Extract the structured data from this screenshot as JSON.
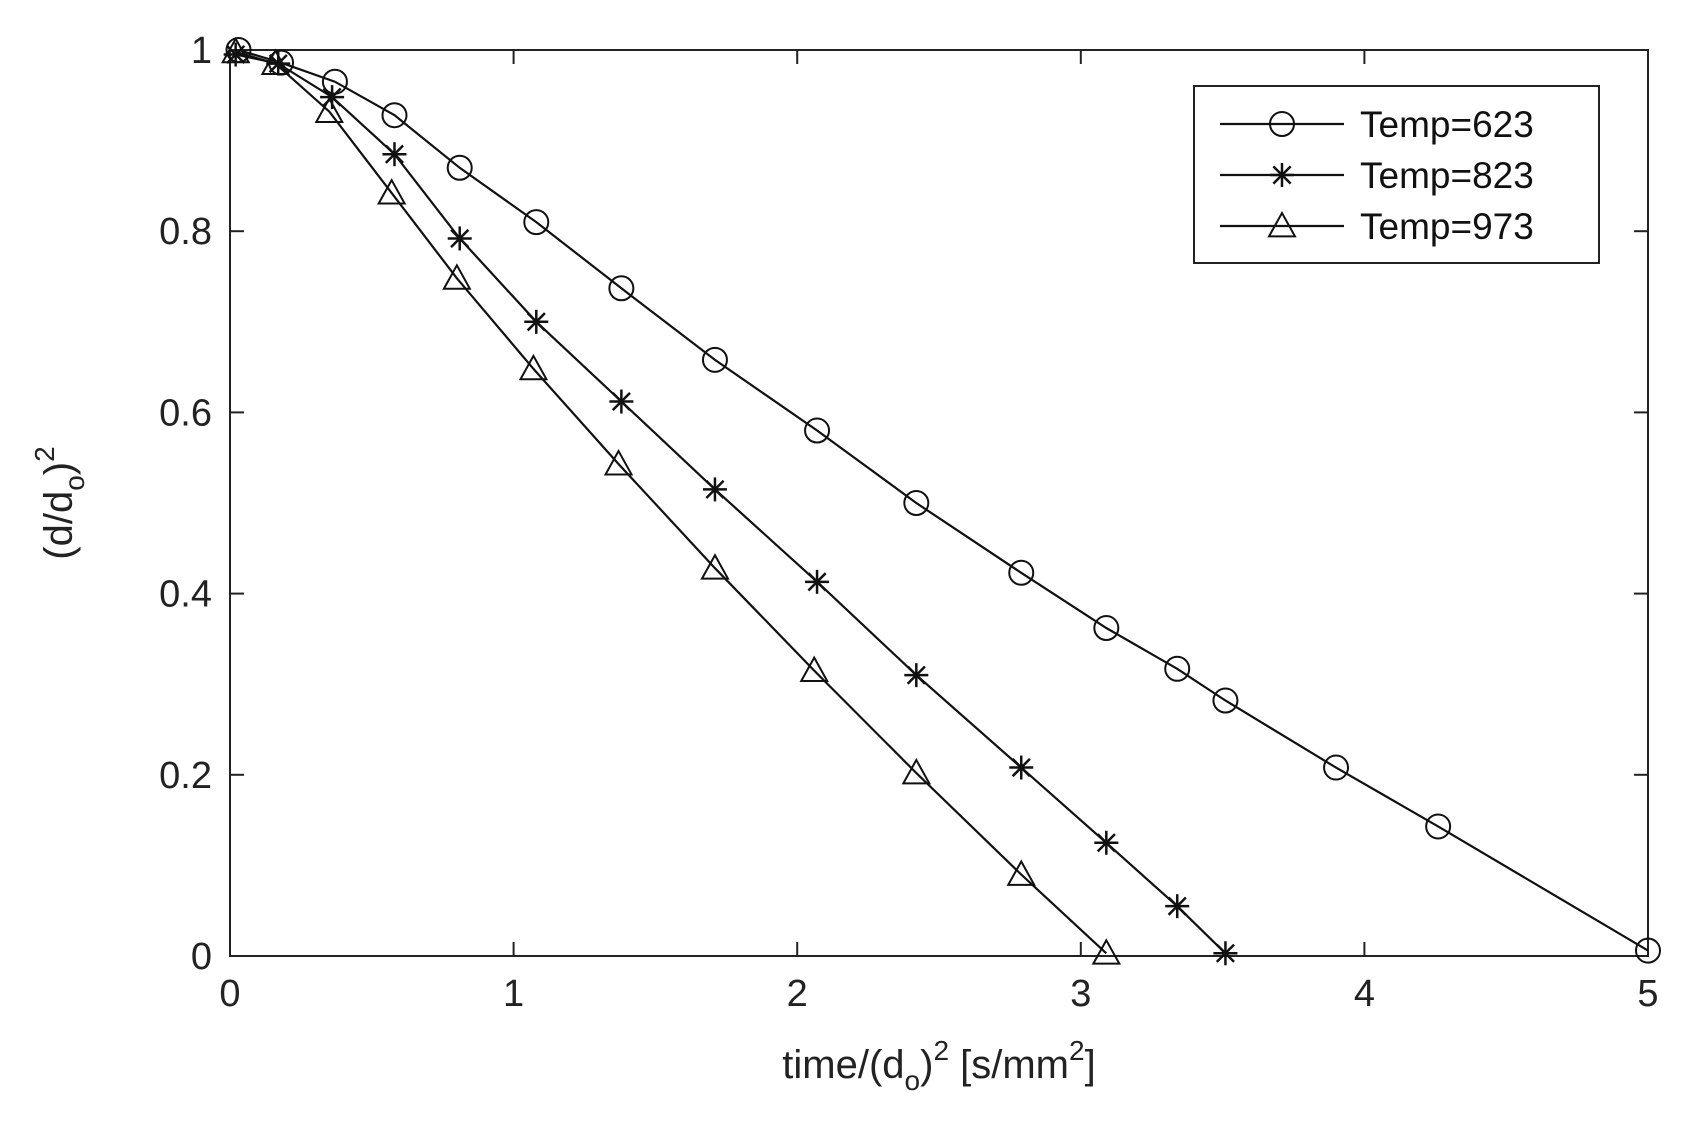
{
  "chart_data": {
    "type": "line",
    "title": "",
    "xlabel": {
      "base": "time/(d",
      "sub": "o",
      "mid": ")",
      "sup": "2",
      "after": " [s/mm",
      "sup2": "2",
      "end": "]"
    },
    "ylabel": {
      "base": "(d/d",
      "sub": "o",
      "mid": ")",
      "sup": "2"
    },
    "xlim": [
      0,
      5
    ],
    "ylim": [
      0,
      1
    ],
    "xticks": [
      0,
      1,
      2,
      3,
      4,
      5
    ],
    "yticks": [
      0,
      0.2,
      0.4,
      0.6,
      0.8,
      1
    ],
    "xtick_labels": [
      "0",
      "1",
      "2",
      "3",
      "4",
      "5"
    ],
    "ytick_labels": [
      "0",
      "0.2",
      "0.4",
      "0.6",
      "0.8",
      "1"
    ],
    "grid": false,
    "legend_position": "top-right",
    "series": [
      {
        "name": "Temp=623",
        "marker": "circle",
        "x": [
          0.03,
          0.18,
          0.37,
          0.58,
          0.81,
          1.08,
          1.38,
          1.71,
          2.07,
          2.42,
          2.79,
          3.09,
          3.34,
          3.51,
          3.9,
          4.26,
          5.0
        ],
        "y": [
          1.0,
          0.986,
          0.965,
          0.928,
          0.87,
          0.81,
          0.737,
          0.658,
          0.58,
          0.5,
          0.423,
          0.362,
          0.317,
          0.282,
          0.208,
          0.143,
          0.006
        ]
      },
      {
        "name": "Temp=823",
        "marker": "star",
        "x": [
          0.02,
          0.17,
          0.36,
          0.58,
          0.81,
          1.08,
          1.38,
          1.71,
          2.07,
          2.42,
          2.79,
          3.09,
          3.34,
          3.51
        ],
        "y": [
          0.995,
          0.985,
          0.948,
          0.885,
          0.792,
          0.7,
          0.612,
          0.515,
          0.413,
          0.31,
          0.208,
          0.125,
          0.055,
          0.003
        ]
      },
      {
        "name": "Temp=973",
        "marker": "triangle",
        "x": [
          0.02,
          0.16,
          0.35,
          0.57,
          0.8,
          1.07,
          1.37,
          1.71,
          2.06,
          2.42,
          2.79,
          3.09
        ],
        "y": [
          0.998,
          0.985,
          0.932,
          0.842,
          0.748,
          0.648,
          0.543,
          0.428,
          0.315,
          0.202,
          0.09,
          0.003
        ]
      }
    ]
  }
}
